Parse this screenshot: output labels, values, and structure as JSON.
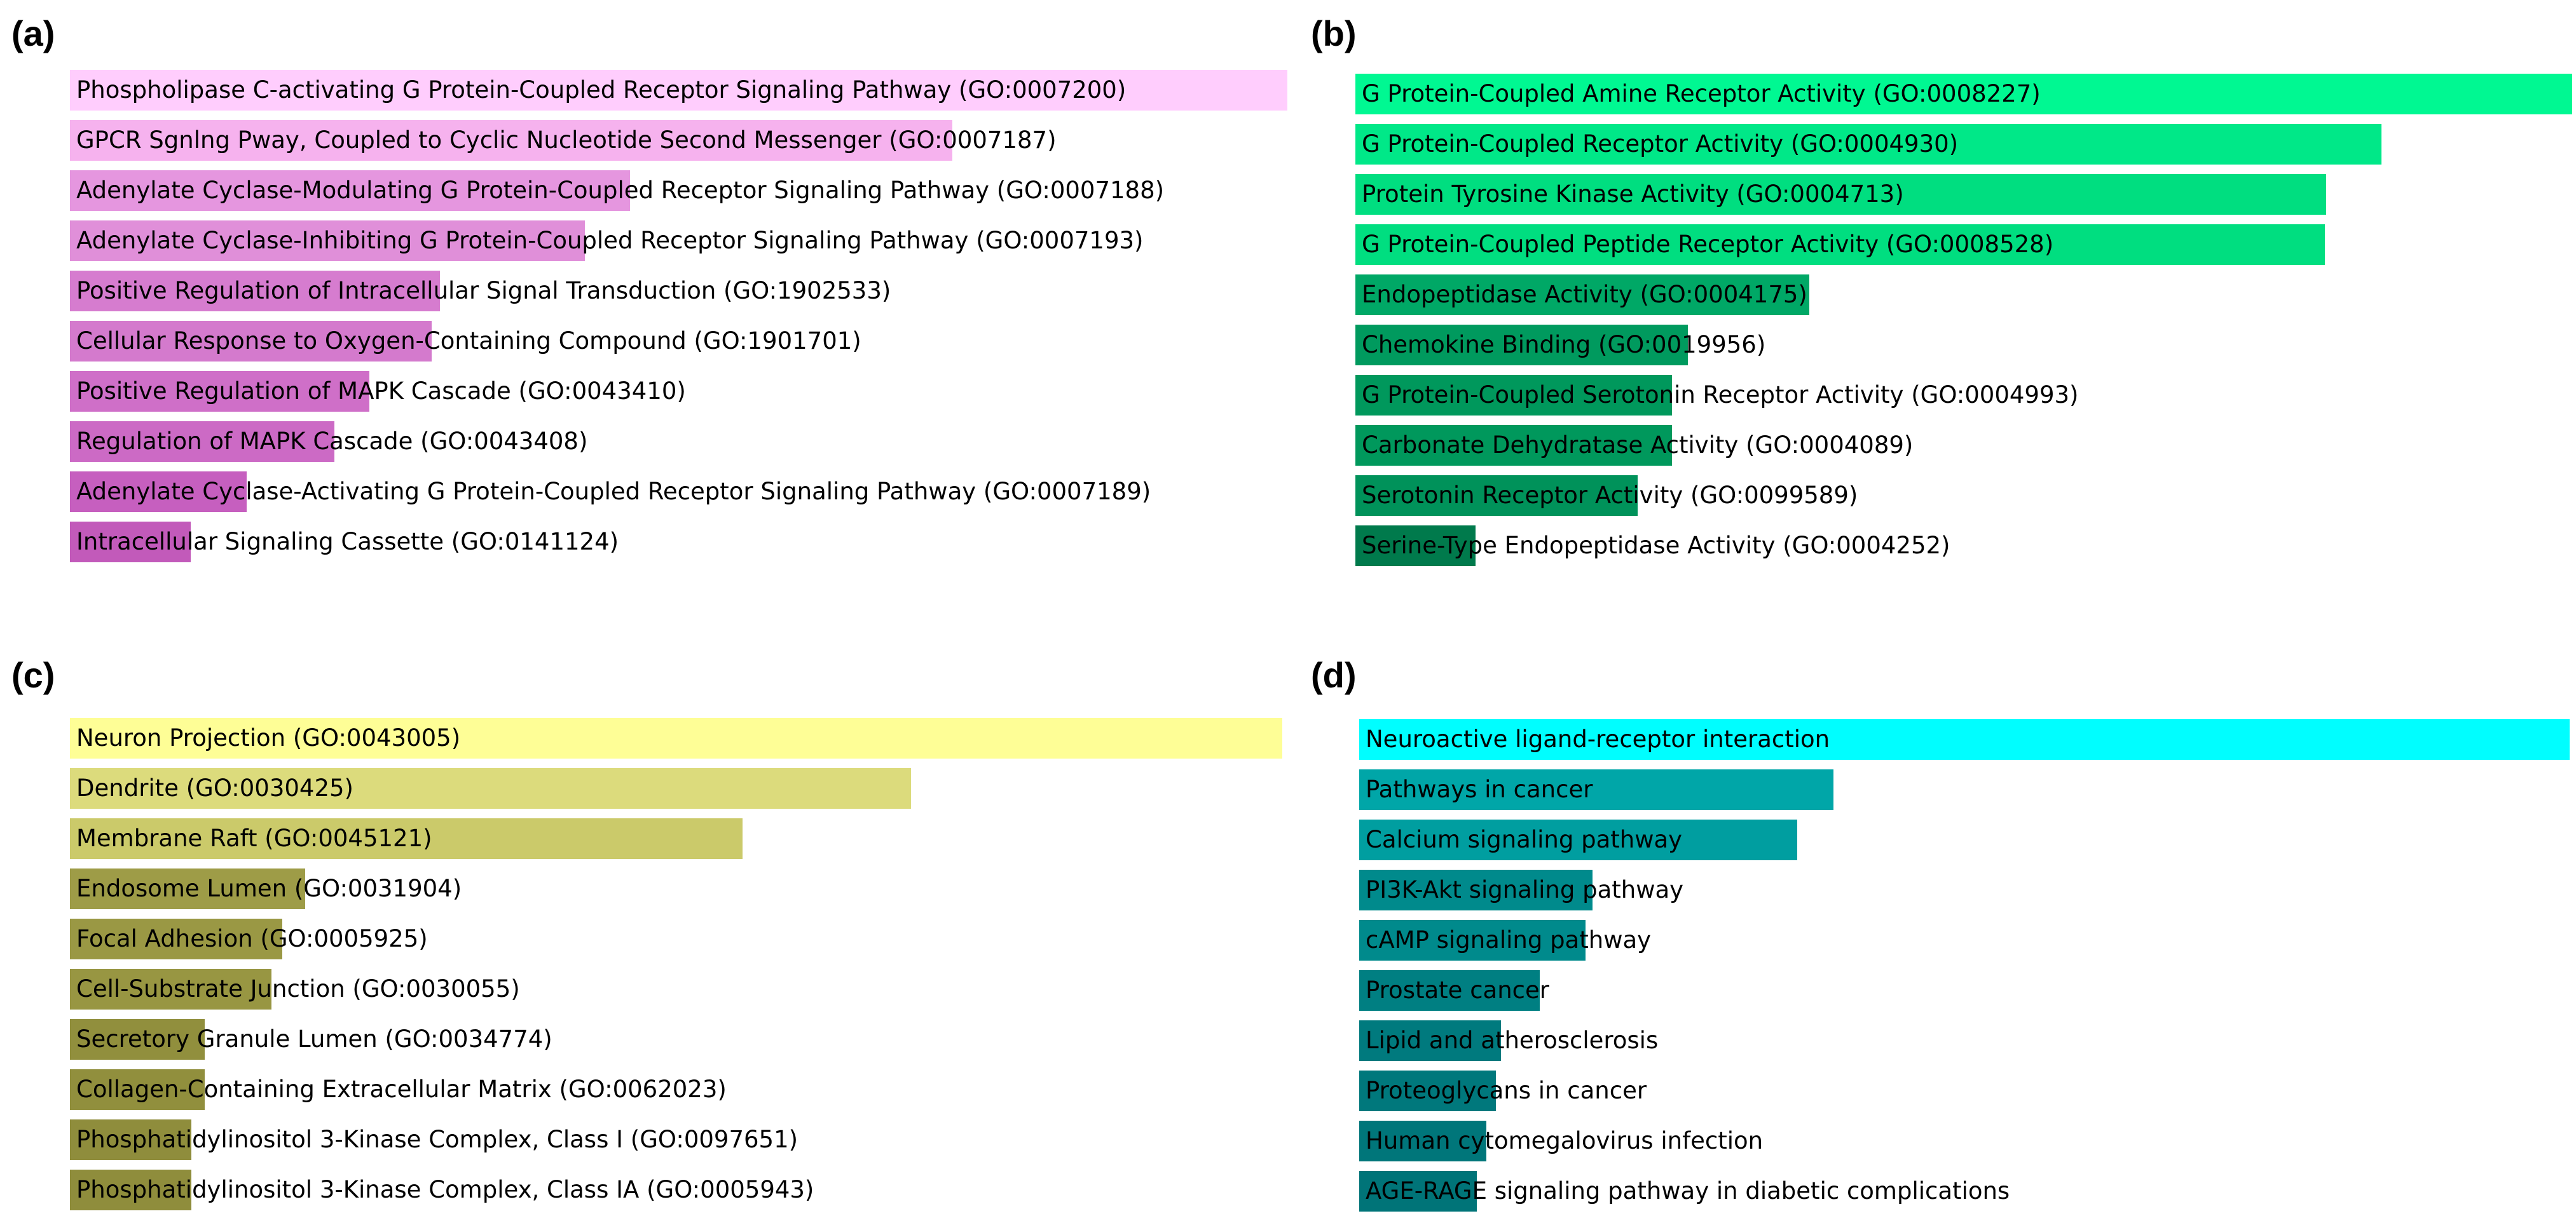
{
  "chart_data": [
    {
      "type": "bar",
      "orientation": "horizontal",
      "panel": "(a)",
      "categories": [
        "Phospholipase C-activating G Protein-Coupled Receptor Signaling Pathway (GO:0007200)",
        "GPCR Sgnlng Pway, Coupled to Cyclic Nucleotide Second Messenger (GO:0007187)",
        "Adenylate Cyclase-Modulating G Protein-Coupled Receptor Signaling Pathway (GO:0007188)",
        "Adenylate Cyclase-Inhibiting G Protein-Coupled Receptor Signaling Pathway (GO:0007193)",
        "Positive Regulation of Intracellular Signal Transduction (GO:1902533)",
        "Cellular Response to Oxygen-Containing Compound (GO:1901701)",
        "Positive Regulation of MAPK Cascade (GO:0043410)",
        "Regulation of MAPK Cascade (GO:0043408)",
        "Adenylate Cyclase-Activating G Protein-Coupled Receptor Signaling Pathway (GO:0007189)",
        "Intracellular Signaling Cassette (GO:0141124)"
      ],
      "values": [
        1.0,
        0.725,
        0.46,
        0.423,
        0.304,
        0.297,
        0.246,
        0.217,
        0.145,
        0.099
      ],
      "colors": [
        "#ffcdfd",
        "#f6b2ee",
        "#e596df",
        "#e08fd9",
        "#d67ccf",
        "#d47acd",
        "#cf6fc8",
        "#cc6ac5",
        "#c65fbf",
        "#c25aba"
      ]
    },
    {
      "type": "bar",
      "orientation": "horizontal",
      "panel": "(b)",
      "categories": [
        "G Protein-Coupled Amine Receptor Activity (GO:0008227)",
        "G Protein-Coupled Receptor Activity (GO:0004930)",
        "Protein Tyrosine Kinase Activity (GO:0004713)",
        "G Protein-Coupled Peptide Receptor Activity (GO:0008528)",
        "Endopeptidase Activity (GO:0004175)",
        "Chemokine Binding (GO:0019956)",
        "G Protein-Coupled Serotonin Receptor Activity (GO:0004993)",
        "Carbonate Dehydratase Activity (GO:0004089)",
        "Serotonin Receptor Activity (GO:0099589)",
        "Serine-Type Endopeptidase Activity (GO:0004252)"
      ],
      "values": [
        1.0,
        0.843,
        0.798,
        0.797,
        0.373,
        0.273,
        0.26,
        0.26,
        0.232,
        0.099
      ],
      "colors": [
        "#00f892",
        "#00e888",
        "#00de80",
        "#00de80",
        "#00a866",
        "#009a5e",
        "#00985c",
        "#00985c",
        "#00925a",
        "#007a4c"
      ]
    },
    {
      "type": "bar",
      "orientation": "horizontal",
      "panel": "(c)",
      "categories": [
        "Neuron Projection (GO:0043005)",
        "Dendrite (GO:0030425)",
        "Membrane Raft (GO:0045121)",
        "Endosome Lumen (GO:0031904)",
        "Focal Adhesion (GO:0005925)",
        "Cell-Substrate Junction (GO:0030055)",
        "Secretory Granule Lumen (GO:0034774)",
        "Collagen-Containing Extracellular Matrix (GO:0062023)",
        "Phosphatidylinositol 3-Kinase Complex, Class I (GO:0097651)",
        "Phosphatidylinositol 3-Kinase Complex, Class IA (GO:0005943)"
      ],
      "values": [
        1.0,
        0.694,
        0.555,
        0.194,
        0.175,
        0.166,
        0.111,
        0.111,
        0.1,
        0.1
      ],
      "colors": [
        "#fefe96",
        "#dcdb7c",
        "#cbca6a",
        "#9e9c47",
        "#9a9844",
        "#989642",
        "#918f3d",
        "#918f3d",
        "#8f8d3c",
        "#8f8d3c"
      ]
    },
    {
      "type": "bar",
      "orientation": "horizontal",
      "panel": "(d)",
      "categories": [
        "Neuroactive ligand-receptor interaction",
        "Pathways in cancer",
        "Calcium signaling pathway",
        "PI3K-Akt signaling pathway",
        "cAMP signaling pathway",
        "Prostate cancer",
        "Lipid and atherosclerosis",
        "Proteoglycans in cancer",
        "Human cytomegalovirus infection",
        "AGE-RAGE signaling pathway in diabetic complications"
      ],
      "values": [
        1.0,
        0.392,
        0.362,
        0.193,
        0.187,
        0.149,
        0.117,
        0.113,
        0.105,
        0.097
      ],
      "colors": [
        "#00feff",
        "#00a6a8",
        "#009ea0",
        "#008a8c",
        "#008a8c",
        "#007f82",
        "#007a7e",
        "#00787c",
        "#00767a",
        "#007478"
      ]
    }
  ]
}
